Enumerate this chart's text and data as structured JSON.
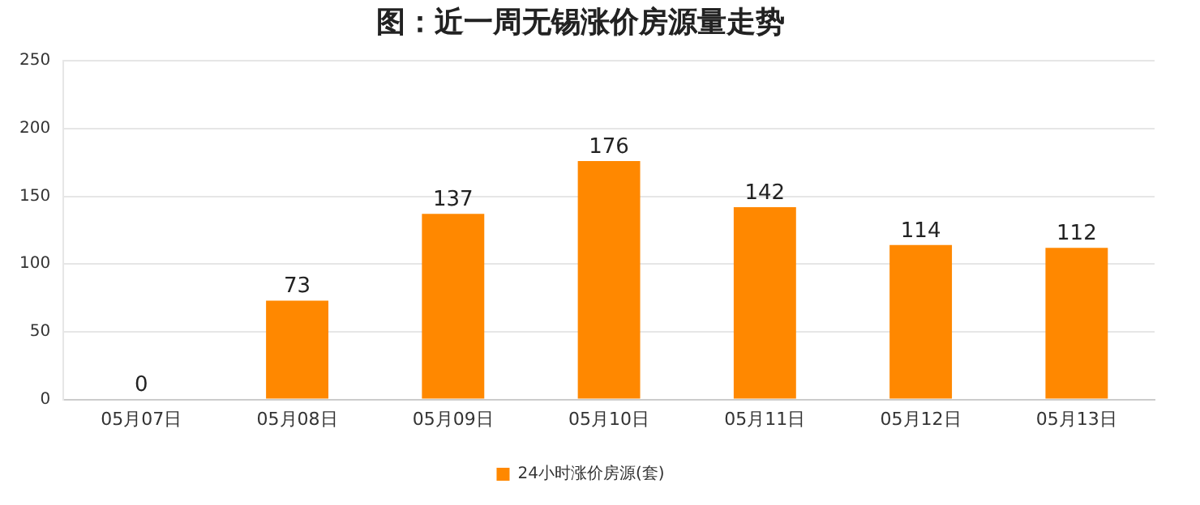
{
  "chart_data": {
    "type": "bar",
    "title": "图：近一周无锡涨价房源量走势",
    "categories": [
      "05月07日",
      "05月08日",
      "05月09日",
      "05月10日",
      "05月11日",
      "05月12日",
      "05月13日"
    ],
    "series": [
      {
        "name": "24小时涨价房源(套)",
        "color": "#ff8800",
        "values": [
          0,
          73,
          137,
          176,
          142,
          114,
          112
        ]
      }
    ],
    "ylim": [
      0,
      250
    ],
    "yticks": [
      0,
      50,
      100,
      150,
      200,
      250
    ],
    "grid": "y",
    "legend": "bottom",
    "data_labels": true
  }
}
